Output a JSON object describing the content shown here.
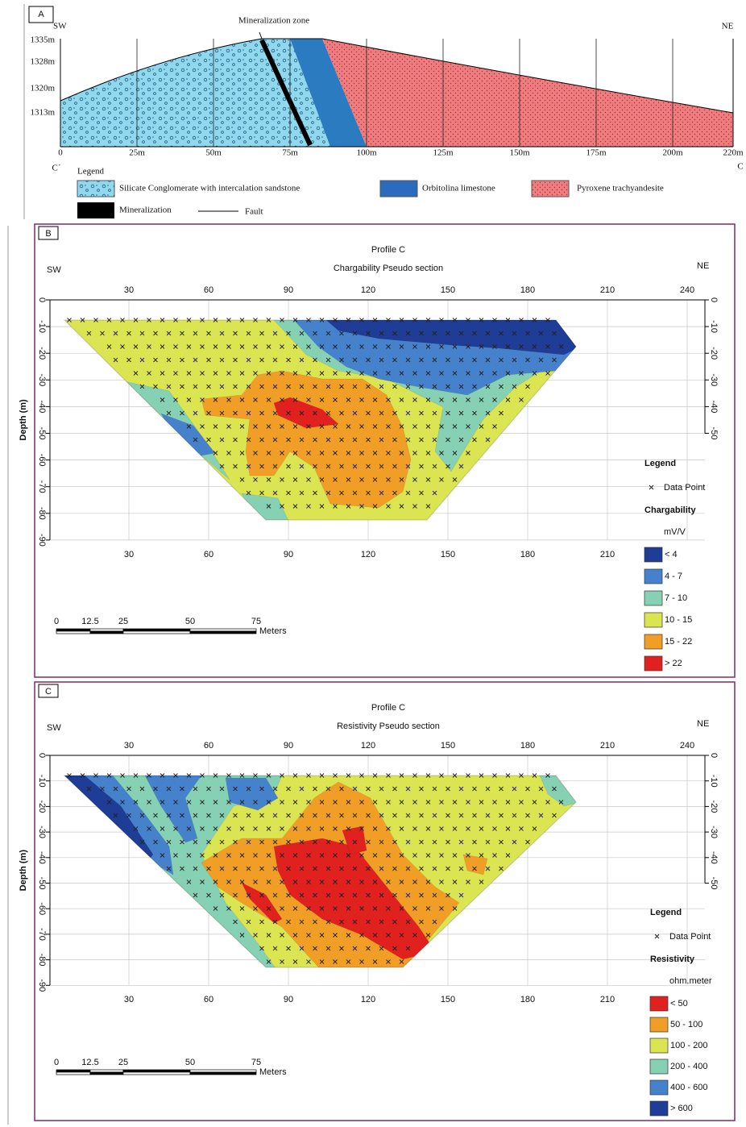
{
  "panel_a": {
    "label": "A",
    "sw": "SW",
    "ne": "NE",
    "zone": "Mineralization zone",
    "yticks": [
      "1335m",
      "1328m",
      "1320m",
      "1313m"
    ],
    "xticks": [
      "0",
      "25m",
      "50m",
      "75m",
      "100m",
      "125m",
      "150m",
      "175m",
      "200m",
      "220m"
    ],
    "c_prime": "C´",
    "c": "C",
    "legend_title": "Legend",
    "legend": [
      "Silicate Conglomerate with intercalation sandstone",
      "Orbitolina limestone",
      "Pyroxene trachyandesite",
      "Mineralization",
      "Fault"
    ]
  },
  "panel_b": {
    "label": "B",
    "title": "Profile C",
    "subtitle": "Chargability Pseudo section",
    "sw": "SW",
    "ne": "NE",
    "top_ticks": [
      "30",
      "60",
      "90",
      "120",
      "150",
      "180",
      "210",
      "240"
    ],
    "bottom_ticks": [
      "30",
      "60",
      "90",
      "120",
      "150",
      "180",
      "210"
    ],
    "depth_ticks": [
      "0",
      "-10",
      "-20",
      "-30",
      "-40",
      "-50",
      "-60",
      "-70",
      "-80",
      "-90"
    ],
    "right_ticks": [
      "0",
      "-10",
      "-20",
      "-30",
      "-40",
      "-50"
    ],
    "y_label": "Depth (m)",
    "scale": [
      "0",
      "12.5",
      "25",
      "50",
      "75"
    ],
    "scale_unit": "Meters",
    "legend_title": "Legend",
    "data_point": "Data Point",
    "quantity": "Chargability",
    "unit": "mV/V",
    "classes": [
      {
        "label": "< 4",
        "color": "#1f3c96"
      },
      {
        "label": "4 - 7",
        "color": "#4682cc"
      },
      {
        "label": "7 - 10",
        "color": "#86d0b4"
      },
      {
        "label": "10 - 15",
        "color": "#dbe552"
      },
      {
        "label": "15 - 22",
        "color": "#f19e26"
      },
      {
        "label": "> 22",
        "color": "#e1211f"
      }
    ]
  },
  "panel_c": {
    "label": "C",
    "title": "Profile C",
    "subtitle": "Resistivity Pseudo section",
    "sw": "SW",
    "ne": "NE",
    "top_ticks": [
      "30",
      "60",
      "90",
      "120",
      "150",
      "180",
      "210",
      "240"
    ],
    "bottom_ticks": [
      "30",
      "60",
      "90",
      "120",
      "150",
      "180",
      "210"
    ],
    "depth_ticks": [
      "0",
      "-10",
      "-20",
      "-30",
      "-40",
      "-50",
      "-60",
      "-70",
      "-80",
      "-90"
    ],
    "right_ticks": [
      "0",
      "-10",
      "-20",
      "-30",
      "-40",
      "-50"
    ],
    "y_label": "Depth (m)",
    "scale": [
      "0",
      "12.5",
      "25",
      "50",
      "75"
    ],
    "scale_unit": "Meters",
    "legend_title": "Legend",
    "data_point": "Data Point",
    "quantity": "Resistivity",
    "unit": "ohm.meter",
    "classes": [
      {
        "label": "< 50",
        "color": "#e1211f"
      },
      {
        "label": "50 - 100",
        "color": "#f19e26"
      },
      {
        "label": "100 - 200",
        "color": "#dbe552"
      },
      {
        "label": "200 - 400",
        "color": "#86d0b4"
      },
      {
        "label": "400 - 600",
        "color": "#4682cc"
      },
      {
        "label": "> 600",
        "color": "#1f3c96"
      }
    ]
  }
}
